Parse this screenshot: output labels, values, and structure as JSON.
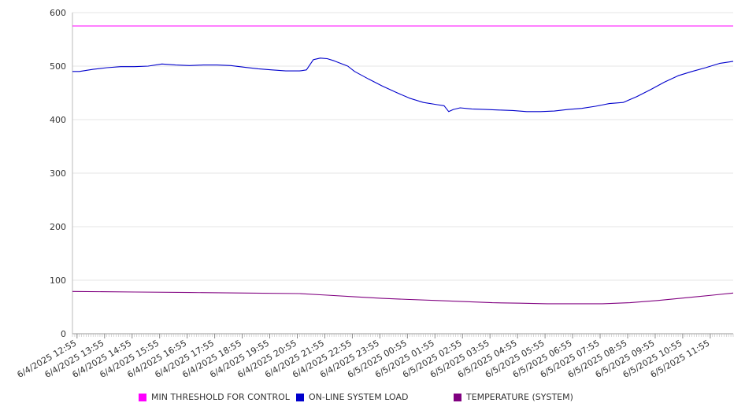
{
  "chart_data": {
    "type": "line",
    "title": "",
    "xlabel": "",
    "ylabel": "",
    "ylim": [
      0,
      600
    ],
    "yticks": [
      0,
      100,
      200,
      300,
      400,
      500,
      600
    ],
    "grid": true,
    "legend_position": "bottom",
    "x_tick_labels": [
      "6/4/2025 12:55",
      "6/4/2025 13:55",
      "6/4/2025 14:55",
      "6/4/2025 15:55",
      "6/4/2025 16:55",
      "6/4/2025 17:55",
      "6/4/2025 18:55",
      "6/4/2025 19:55",
      "6/4/2025 20:55",
      "6/4/2025 21:55",
      "6/4/2025 22:55",
      "6/4/2025 23:55",
      "6/5/2025 00:55",
      "6/5/2025 01:55",
      "6/5/2025 02:55",
      "6/5/2025 03:55",
      "6/5/2025 04:55",
      "6/5/2025 05:55",
      "6/5/2025 06:55",
      "6/5/2025 07:55",
      "6/5/2025 08:55",
      "6/5/2025 09:55",
      "6/5/2025 10:55",
      "6/5/2025 11:55"
    ],
    "x_start": "6/4/2025 12:45",
    "x_end": "6/5/2025 12:45",
    "series": [
      {
        "name": "MIN THRESHOLD FOR CONTROL",
        "color": "#ff00ff",
        "points": [
          [
            "6/4/2025 12:45",
            575
          ],
          [
            "6/5/2025 12:45",
            575
          ]
        ]
      },
      {
        "name": "ON-LINE SYSTEM LOAD",
        "color": "#0000cc",
        "points": [
          [
            "6/4/2025 12:45",
            490
          ],
          [
            "6/4/2025 13:00",
            490
          ],
          [
            "6/4/2025 13:30",
            494
          ],
          [
            "6/4/2025 14:00",
            497
          ],
          [
            "6/4/2025 14:30",
            499
          ],
          [
            "6/4/2025 15:00",
            499
          ],
          [
            "6/4/2025 15:30",
            500
          ],
          [
            "6/4/2025 16:00",
            504
          ],
          [
            "6/4/2025 16:30",
            502
          ],
          [
            "6/4/2025 17:00",
            501
          ],
          [
            "6/4/2025 17:30",
            502
          ],
          [
            "6/4/2025 18:00",
            502
          ],
          [
            "6/4/2025 18:30",
            501
          ],
          [
            "6/4/2025 19:00",
            498
          ],
          [
            "6/4/2025 19:30",
            495
          ],
          [
            "6/4/2025 20:00",
            493
          ],
          [
            "6/4/2025 20:30",
            491
          ],
          [
            "6/4/2025 21:00",
            491
          ],
          [
            "6/4/2025 21:15",
            493
          ],
          [
            "6/4/2025 21:30",
            512
          ],
          [
            "6/4/2025 21:45",
            515
          ],
          [
            "6/4/2025 22:00",
            514
          ],
          [
            "6/4/2025 22:15",
            510
          ],
          [
            "6/4/2025 22:30",
            505
          ],
          [
            "6/4/2025 22:45",
            500
          ],
          [
            "6/4/2025 23:00",
            490
          ],
          [
            "6/4/2025 23:30",
            476
          ],
          [
            "6/5/2025 00:00",
            463
          ],
          [
            "6/5/2025 00:30",
            451
          ],
          [
            "6/5/2025 01:00",
            440
          ],
          [
            "6/5/2025 01:30",
            432
          ],
          [
            "6/5/2025 02:00",
            428
          ],
          [
            "6/5/2025 02:15",
            426
          ],
          [
            "6/5/2025 02:25",
            415
          ],
          [
            "6/5/2025 02:35",
            419
          ],
          [
            "6/5/2025 02:50",
            422
          ],
          [
            "6/5/2025 03:15",
            420
          ],
          [
            "6/5/2025 03:45",
            419
          ],
          [
            "6/5/2025 04:15",
            418
          ],
          [
            "6/5/2025 04:45",
            417
          ],
          [
            "6/5/2025 05:15",
            415
          ],
          [
            "6/5/2025 05:45",
            415
          ],
          [
            "6/5/2025 06:15",
            416
          ],
          [
            "6/5/2025 06:45",
            419
          ],
          [
            "6/5/2025 07:15",
            421
          ],
          [
            "6/5/2025 07:45",
            425
          ],
          [
            "6/5/2025 08:15",
            430
          ],
          [
            "6/5/2025 08:45",
            432
          ],
          [
            "6/5/2025 09:15",
            443
          ],
          [
            "6/5/2025 09:45",
            456
          ],
          [
            "6/5/2025 10:15",
            470
          ],
          [
            "6/5/2025 10:45",
            482
          ],
          [
            "6/5/2025 11:15",
            490
          ],
          [
            "6/5/2025 11:45",
            497
          ],
          [
            "6/5/2025 12:15",
            505
          ],
          [
            "6/5/2025 12:45",
            509
          ]
        ]
      },
      {
        "name": "TEMPERATURE (SYSTEM)",
        "color": "#800080",
        "points": [
          [
            "6/4/2025 12:45",
            79
          ],
          [
            "6/4/2025 15:00",
            78
          ],
          [
            "6/4/2025 17:00",
            77
          ],
          [
            "6/4/2025 19:00",
            76
          ],
          [
            "6/4/2025 21:00",
            75
          ],
          [
            "6/4/2025 22:00",
            72
          ],
          [
            "6/4/2025 23:00",
            69
          ],
          [
            "6/5/2025 00:00",
            66
          ],
          [
            "6/5/2025 01:00",
            64
          ],
          [
            "6/5/2025 02:00",
            62
          ],
          [
            "6/5/2025 03:00",
            60
          ],
          [
            "6/5/2025 04:00",
            58
          ],
          [
            "6/5/2025 05:00",
            57
          ],
          [
            "6/5/2025 06:00",
            56
          ],
          [
            "6/5/2025 07:00",
            56
          ],
          [
            "6/5/2025 08:00",
            56
          ],
          [
            "6/5/2025 09:00",
            58
          ],
          [
            "6/5/2025 10:00",
            62
          ],
          [
            "6/5/2025 11:00",
            67
          ],
          [
            "6/5/2025 12:00",
            72
          ],
          [
            "6/5/2025 12:45",
            76
          ]
        ]
      }
    ]
  }
}
